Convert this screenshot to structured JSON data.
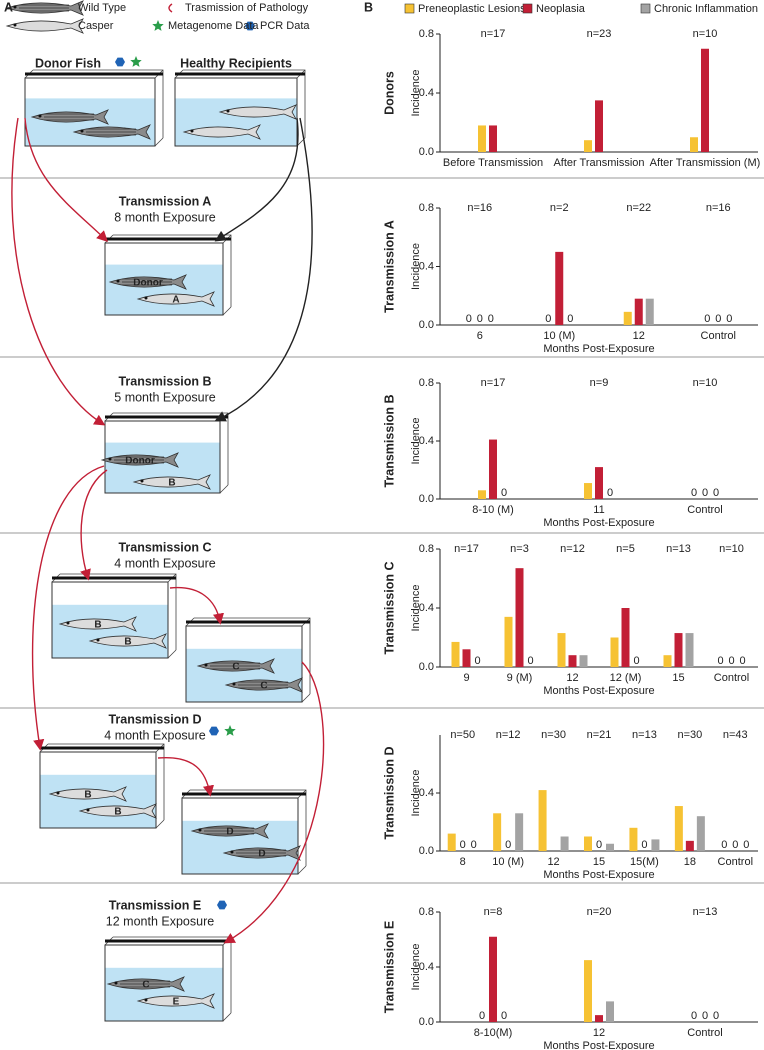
{
  "panel_a": {
    "label": "A",
    "legend": [
      "Wild Type",
      "Trasmission of Pathology",
      "Casper",
      "Metagenome Data",
      "PCR Data"
    ],
    "donor": "Donor Fish",
    "recipients": "Healthy Recipients",
    "stages": [
      {
        "title": "Transmission A",
        "subtitle": "8 month Exposure"
      },
      {
        "title": "Transmission B",
        "subtitle": "5 month Exposure"
      },
      {
        "title": "Transmission C",
        "subtitle": "4 month Exposure"
      },
      {
        "title": "Transmission D",
        "subtitle": "4 month Exposure"
      },
      {
        "title": "Transmission E",
        "subtitle": "12 month Exposure"
      }
    ],
    "fish_labels": [
      "Donor",
      "A",
      "Donor",
      "B",
      "B",
      "B",
      "C",
      "C",
      "B",
      "B",
      "D",
      "D",
      "C",
      "E"
    ]
  },
  "panel_b": {
    "label": "B"
  },
  "chart_data": [
    {
      "type": "bar",
      "row_label": "Donors",
      "ylabel": "Incidence",
      "categories": [
        "Before Transmission",
        "After Transmission",
        "After Transmission (M)"
      ],
      "n_labels": [
        "n=17",
        "n=23",
        "n=10"
      ],
      "series": [
        {
          "name": "Preneoplastic Lesions",
          "color": "#f6c233",
          "values": [
            0.18,
            0.08,
            0.1
          ]
        },
        {
          "name": "Neoplasia",
          "color": "#c21f36",
          "values": [
            0.18,
            0.35,
            0.7
          ]
        },
        {
          "name": "Chronic Inflammation",
          "color": "#a3a3a3",
          "values": [
            null,
            null,
            null
          ]
        }
      ],
      "ylim": [
        0,
        0.8
      ],
      "yticks": [
        {
          "value": 0,
          "label": "0.0"
        },
        0.4,
        0.8
      ]
    },
    {
      "type": "bar",
      "row_label": "Transmission A",
      "ylabel": "Incidence",
      "xlabel": "Months Post-Exposure",
      "categories": [
        "6",
        "10 (M)",
        "12",
        "Control"
      ],
      "n_labels": [
        "n=16",
        "n=2",
        "n=22",
        "n=16"
      ],
      "series": [
        {
          "name": "Preneoplastic Lesions",
          "color": "#f6c233",
          "values": [
            0,
            0,
            0.09,
            0
          ]
        },
        {
          "name": "Neoplasia",
          "color": "#c21f36",
          "values": [
            0,
            0.5,
            0.18,
            0
          ]
        },
        {
          "name": "Chronic Inflammation",
          "color": "#a3a3a3",
          "values": [
            0,
            0,
            0.18,
            0
          ]
        }
      ],
      "ylim": [
        0,
        0.8
      ],
      "yticks": [
        {
          "value": 0,
          "label": "0.0"
        },
        0.4,
        0.8
      ]
    },
    {
      "type": "bar",
      "row_label": "Transmission B",
      "ylabel": "Incidence",
      "xlabel": "Months Post-Exposure",
      "categories": [
        "8-10 (M)",
        "11",
        "Control"
      ],
      "n_labels": [
        "n=17",
        "n=9",
        "n=10"
      ],
      "series": [
        {
          "name": "Preneoplastic Lesions",
          "color": "#f6c233",
          "values": [
            0.06,
            0.11,
            0
          ]
        },
        {
          "name": "Neoplasia",
          "color": "#c21f36",
          "values": [
            0.41,
            0.22,
            0
          ]
        },
        {
          "name": "Chronic Inflammation",
          "color": "#a3a3a3",
          "values": [
            0,
            0,
            0
          ]
        }
      ],
      "ylim": [
        0,
        0.8
      ],
      "yticks": [
        {
          "value": 0,
          "label": "0.0"
        },
        0.4,
        0.8
      ]
    },
    {
      "type": "bar",
      "row_label": "Transmission C",
      "ylabel": "Incidence",
      "xlabel": "Months Post-Exposure",
      "categories": [
        "9",
        "9 (M)",
        "12",
        "12 (M)",
        "15",
        "Control"
      ],
      "n_labels": [
        "n=17",
        "n=3",
        "n=12",
        "n=5",
        "n=13",
        "n=10"
      ],
      "series": [
        {
          "name": "Preneoplastic Lesions",
          "color": "#f6c233",
          "values": [
            0.17,
            0.34,
            0.23,
            0.2,
            0.08,
            0
          ]
        },
        {
          "name": "Neoplasia",
          "color": "#c21f36",
          "values": [
            0.12,
            0.67,
            0.08,
            0.4,
            0.23,
            0
          ]
        },
        {
          "name": "Chronic Inflammation",
          "color": "#a3a3a3",
          "values": [
            0,
            0,
            0.08,
            0,
            0.23,
            0
          ]
        }
      ],
      "ylim": [
        0,
        0.8
      ],
      "yticks": [
        {
          "value": 0,
          "label": "0.0"
        },
        0.4,
        0.8
      ]
    },
    {
      "type": "bar",
      "row_label": "Transmission D",
      "ylabel": "Incidence",
      "xlabel": "Months Post-Exposure",
      "categories": [
        "8",
        "10 (M)",
        "12",
        "15",
        "15(M)",
        "18",
        "Control"
      ],
      "n_labels": [
        "n=50",
        "n=12",
        "n=30",
        "n=21",
        "n=13",
        "n=30",
        "n=43"
      ],
      "series": [
        {
          "name": "Preneoplastic Lesions",
          "color": "#f6c233",
          "values": [
            0.12,
            0.26,
            0.42,
            0.1,
            0.16,
            0.31,
            0
          ]
        },
        {
          "name": "Neoplasia",
          "color": "#c21f36",
          "values": [
            0,
            0,
            null,
            0,
            0,
            0.07,
            0
          ]
        },
        {
          "name": "Chronic Inflammation",
          "color": "#a3a3a3",
          "values": [
            0,
            0.26,
            0.1,
            0.05,
            0.08,
            0.24,
            0
          ]
        }
      ],
      "ylim": [
        0,
        0.8
      ],
      "yticks": [
        {
          "value": 0,
          "label": "0.0"
        },
        0.4
      ]
    },
    {
      "type": "bar",
      "row_label": "Transmission E",
      "ylabel": "Incidence",
      "xlabel": "Months Post-Exposure",
      "categories": [
        "8-10(M)",
        "12",
        "Control"
      ],
      "n_labels": [
        "n=8",
        "n=20",
        "n=13"
      ],
      "series": [
        {
          "name": "Preneoplastic Lesions",
          "color": "#f6c233",
          "values": [
            0,
            0.45,
            0
          ]
        },
        {
          "name": "Neoplasia",
          "color": "#c21f36",
          "values": [
            0.62,
            0.05,
            0
          ]
        },
        {
          "name": "Chronic Inflammation",
          "color": "#a3a3a3",
          "values": [
            0,
            0.15,
            0
          ]
        }
      ],
      "ylim": [
        0,
        0.8
      ],
      "yticks": [
        {
          "value": 0,
          "label": "0.0"
        },
        0.4,
        0.8
      ]
    }
  ]
}
